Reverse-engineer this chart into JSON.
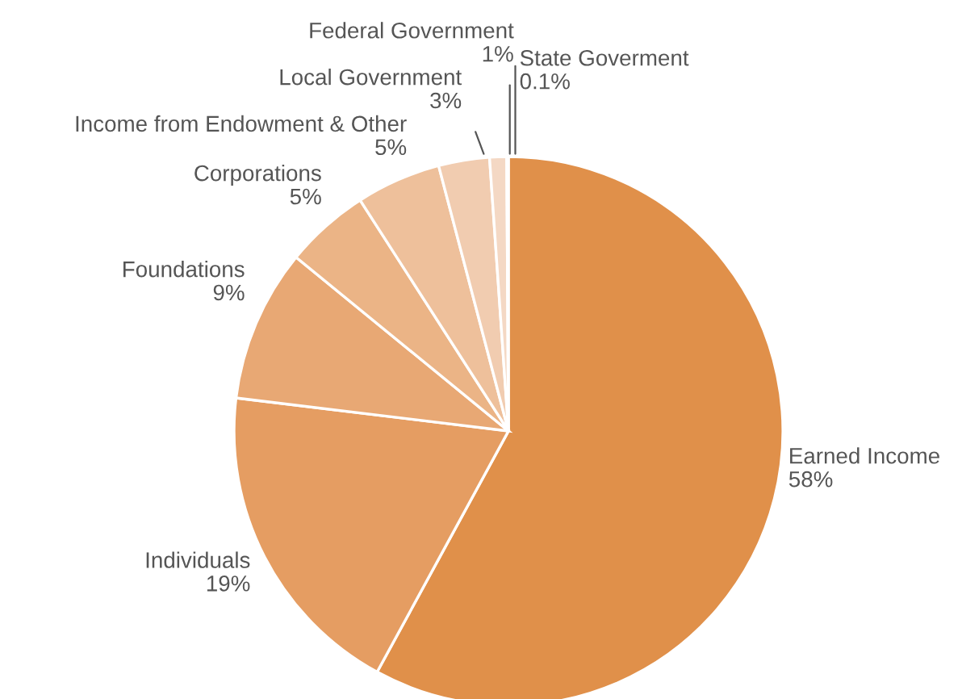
{
  "chart_data": {
    "type": "pie",
    "categories": [
      "Earned Income",
      "Individuals",
      "Foundations",
      "Corporations",
      "Income from Endowment & Other",
      "Local Government",
      "Federal Government",
      "State Goverment"
    ],
    "values": [
      58,
      19,
      9,
      5,
      5,
      3,
      1,
      0.1
    ],
    "value_labels": [
      "58%",
      "19%",
      "9%",
      "5%",
      "5%",
      "3%",
      "1%",
      "0.1%"
    ],
    "colors": [
      "#e0904a",
      "#e59d62",
      "#e8a874",
      "#ebb486",
      "#eec09b",
      "#f1ccb0",
      "#f4d8c4",
      "#f7e4d6"
    ],
    "legend": false
  }
}
